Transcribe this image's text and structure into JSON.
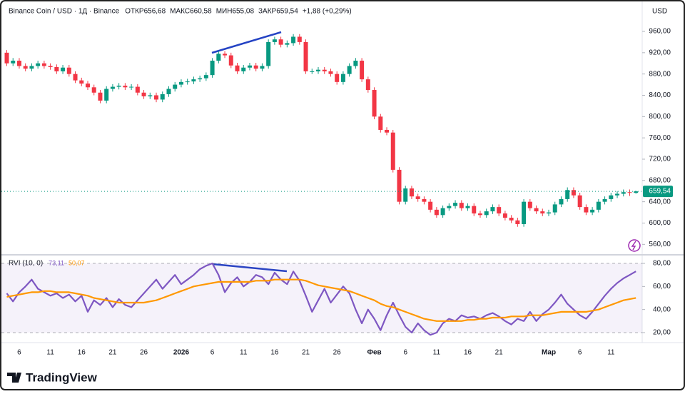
{
  "brand": "TradingView",
  "chart_data": [
    {
      "type": "candlestick",
      "title": "Binance Coin / USD · 1Д · Binance",
      "ohlc_header": [
        "ОТКР656,68",
        "МАКС660,58",
        "МИН655,08",
        "ЗАКР659,54",
        "+1,88 (+0,29%)"
      ],
      "currency": "USD",
      "up_color": "#089981",
      "down_color": "#f23645",
      "categories": [
        null,
        null,
        "6",
        null,
        null,
        null,
        null,
        "11",
        null,
        null,
        null,
        null,
        "16",
        null,
        null,
        null,
        null,
        "21",
        null,
        null,
        null,
        null,
        "26",
        null,
        null,
        null,
        null,
        null,
        "2026",
        null,
        null,
        null,
        null,
        "6",
        null,
        null,
        null,
        null,
        "11",
        null,
        null,
        null,
        null,
        "16",
        null,
        null,
        null,
        null,
        "21",
        null,
        null,
        null,
        null,
        "26",
        null,
        null,
        null,
        null,
        null,
        "Фев",
        null,
        null,
        null,
        null,
        "6",
        null,
        null,
        null,
        null,
        "11",
        null,
        null,
        null,
        null,
        "16",
        null,
        null,
        null,
        null,
        "21",
        null,
        null,
        null,
        null,
        null,
        null,
        null,
        "Мар",
        null,
        null,
        null,
        null,
        "6",
        null,
        null,
        null,
        null,
        "11",
        null,
        null,
        null,
        null
      ],
      "open": [
        920,
        900,
        905,
        895,
        890,
        895,
        900,
        895,
        893,
        885,
        892,
        880,
        868,
        862,
        855,
        845,
        830,
        852,
        856,
        858,
        855,
        856,
        845,
        838,
        840,
        832,
        842,
        852,
        860,
        865,
        866,
        870,
        872,
        878,
        905,
        918,
        915,
        896,
        885,
        892,
        896,
        890,
        895,
        940,
        945,
        935,
        938,
        950,
        940,
        885,
        885,
        888,
        885,
        880,
        865,
        880,
        895,
        905,
        870,
        850,
        800,
        775,
        770,
        700,
        640,
        665,
        650,
        645,
        640,
        625,
        615,
        628,
        632,
        638,
        628,
        632,
        618,
        615,
        622,
        630,
        618,
        610,
        605,
        598,
        640,
        628,
        622,
        618,
        620,
        635,
        645,
        662,
        652,
        630,
        620,
        625,
        640,
        645,
        652,
        655,
        658,
        656.68
      ],
      "high": [
        925,
        910,
        910,
        900,
        900,
        905,
        905,
        900,
        898,
        897,
        897,
        885,
        873,
        867,
        860,
        850,
        857,
        861,
        863,
        863,
        861,
        861,
        850,
        845,
        845,
        847,
        857,
        865,
        870,
        871,
        875,
        877,
        883,
        910,
        923,
        923,
        920,
        901,
        897,
        901,
        901,
        900,
        945,
        950,
        950,
        943,
        955,
        955,
        945,
        890,
        893,
        893,
        890,
        885,
        885,
        900,
        910,
        910,
        875,
        855,
        805,
        780,
        775,
        705,
        670,
        670,
        655,
        650,
        645,
        630,
        633,
        637,
        643,
        643,
        637,
        637,
        623,
        627,
        635,
        635,
        623,
        615,
        610,
        645,
        645,
        633,
        627,
        625,
        640,
        650,
        667,
        667,
        657,
        635,
        630,
        645,
        650,
        657,
        660,
        663,
        663,
        660.58
      ],
      "low": [
        895,
        895,
        890,
        885,
        885,
        890,
        890,
        888,
        880,
        880,
        875,
        863,
        857,
        850,
        840,
        825,
        825,
        847,
        851,
        850,
        850,
        840,
        833,
        833,
        827,
        827,
        837,
        847,
        855,
        860,
        861,
        865,
        867,
        873,
        900,
        910,
        891,
        880,
        880,
        887,
        885,
        885,
        890,
        935,
        930,
        930,
        933,
        935,
        880,
        880,
        880,
        880,
        875,
        860,
        860,
        875,
        890,
        865,
        845,
        795,
        770,
        765,
        695,
        635,
        635,
        645,
        640,
        635,
        620,
        610,
        610,
        623,
        627,
        623,
        623,
        613,
        610,
        610,
        617,
        613,
        605,
        600,
        593,
        593,
        623,
        617,
        613,
        613,
        615,
        630,
        640,
        647,
        625,
        615,
        615,
        620,
        635,
        640,
        647,
        650,
        651,
        655.08
      ],
      "close": [
        900,
        905,
        895,
        890,
        895,
        900,
        895,
        893,
        885,
        892,
        880,
        868,
        862,
        855,
        845,
        830,
        852,
        856,
        858,
        855,
        856,
        845,
        838,
        840,
        832,
        842,
        852,
        860,
        865,
        866,
        870,
        872,
        878,
        905,
        918,
        915,
        896,
        885,
        892,
        896,
        890,
        895,
        940,
        945,
        935,
        938,
        950,
        940,
        885,
        885,
        888,
        885,
        880,
        865,
        880,
        895,
        905,
        870,
        850,
        800,
        775,
        770,
        700,
        640,
        665,
        650,
        645,
        640,
        625,
        615,
        628,
        632,
        638,
        628,
        632,
        618,
        615,
        622,
        630,
        618,
        610,
        605,
        598,
        640,
        628,
        622,
        618,
        620,
        635,
        645,
        662,
        652,
        630,
        620,
        625,
        640,
        645,
        652,
        655,
        658,
        656.68,
        659.54
      ],
      "last_price": {
        "value": 659.54,
        "label": "659,54"
      },
      "ylim": [
        543,
        1019
      ],
      "yticks": [
        {
          "value": 560,
          "label": "560,00"
        },
        {
          "value": 600,
          "label": "600,00"
        },
        {
          "value": 640,
          "label": "640,00"
        },
        {
          "value": 680,
          "label": "680,00"
        },
        {
          "value": 720,
          "label": "720,00"
        },
        {
          "value": 760,
          "label": "760,00"
        },
        {
          "value": 800,
          "label": "800,00"
        },
        {
          "value": 840,
          "label": "840,00"
        },
        {
          "value": 880,
          "label": "880,00"
        },
        {
          "value": 920,
          "label": "920,00"
        },
        {
          "value": 960,
          "label": "960,00"
        }
      ]
    },
    {
      "type": "line",
      "title": "RVI (10, 0)",
      "series": [
        {
          "color": "#7e57c2",
          "last_label": "73,11",
          "values": [
            54,
            47,
            55,
            60,
            66,
            58,
            55,
            52,
            54,
            50,
            53,
            47,
            52,
            38,
            48,
            44,
            50,
            42,
            49,
            44,
            42,
            48,
            54,
            60,
            66,
            58,
            64,
            70,
            62,
            66,
            70,
            75,
            78,
            80,
            70,
            55,
            63,
            68,
            60,
            64,
            70,
            68,
            62,
            72,
            66,
            62,
            73,
            65,
            52,
            38,
            48,
            58,
            46,
            53,
            60,
            54,
            40,
            28,
            40,
            32,
            22,
            35,
            46,
            35,
            25,
            20,
            28,
            22,
            18,
            20,
            28,
            32,
            30,
            35,
            33,
            34,
            32,
            35,
            37,
            34,
            30,
            27,
            32,
            30,
            38,
            30,
            36,
            40,
            46,
            53,
            45,
            40,
            35,
            32,
            38,
            45,
            52,
            58,
            63,
            67,
            70,
            73.11
          ]
        },
        {
          "color": "#ff9800",
          "last_label": "50,07",
          "values": [
            51,
            52,
            53,
            54,
            55,
            55,
            56,
            56,
            55,
            55,
            55,
            54,
            53,
            52,
            50,
            49,
            48,
            47,
            46,
            46,
            46,
            46,
            46,
            47,
            48,
            50,
            52,
            54,
            56,
            58,
            60,
            61,
            62,
            63,
            64,
            64,
            64,
            64,
            64,
            64,
            65,
            65,
            65,
            66,
            66,
            66,
            66,
            66,
            65,
            63,
            61,
            60,
            59,
            58,
            57,
            56,
            54,
            52,
            50,
            48,
            45,
            43,
            42,
            40,
            38,
            36,
            34,
            32,
            31,
            30,
            30,
            30,
            30,
            30,
            31,
            31,
            32,
            32,
            33,
            33,
            33,
            34,
            34,
            34,
            35,
            35,
            35,
            36,
            37,
            38,
            38,
            38,
            38,
            38,
            39,
            40,
            42,
            44,
            46,
            48,
            49,
            50.07
          ]
        }
      ],
      "ylim": [
        14.4,
        85.6
      ],
      "yticks": [
        {
          "value": 20,
          "label": "20,00"
        },
        {
          "value": 40,
          "label": "40,00"
        },
        {
          "value": 60,
          "label": "60,00"
        },
        {
          "value": 80,
          "label": "80,00"
        }
      ]
    }
  ]
}
